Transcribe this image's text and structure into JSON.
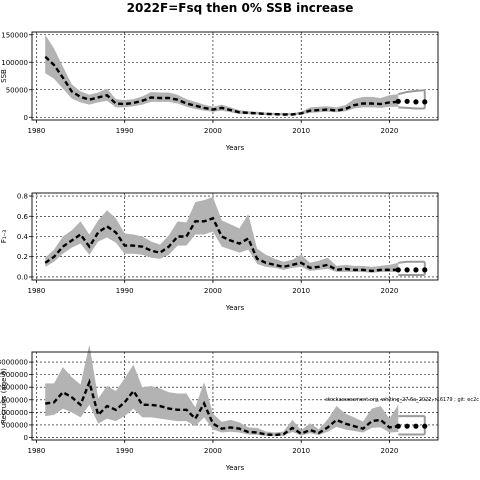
{
  "title": "2022F=Fsq then 0% SSB increase",
  "note": "stockassessment.org, whiting_27.6a_2022, r16179 ; git: ec2c",
  "chart_data": [
    {
      "type": "line",
      "ylabel": "SSB",
      "xlabel": "Years",
      "xlim": [
        1979.5,
        2025.5
      ],
      "ylim": [
        -5000,
        155000
      ],
      "xticks": [
        1980,
        1990,
        2000,
        2010,
        2020
      ],
      "yticks": [
        0,
        50000,
        100000,
        150000
      ],
      "ytick_labels": [
        "0",
        "50000",
        "100000",
        "150000"
      ],
      "grid": true,
      "x": [
        1981,
        1982,
        1983,
        1984,
        1985,
        1986,
        1987,
        1988,
        1989,
        1990,
        1991,
        1992,
        1993,
        1994,
        1995,
        1996,
        1997,
        1998,
        1999,
        2000,
        2001,
        2002,
        2003,
        2004,
        2005,
        2006,
        2007,
        2008,
        2009,
        2010,
        2011,
        2012,
        2013,
        2014,
        2015,
        2016,
        2017,
        2018,
        2019,
        2020,
        2021
      ],
      "estimate": [
        110000,
        95000,
        72000,
        47000,
        37000,
        32000,
        36000,
        40000,
        25000,
        24000,
        26000,
        30000,
        36000,
        35000,
        35000,
        32000,
        25000,
        21000,
        17000,
        14000,
        17000,
        13000,
        9000,
        8000,
        7000,
        6000,
        5500,
        5000,
        5000,
        7000,
        12000,
        13000,
        14000,
        12000,
        15000,
        22000,
        25000,
        25000,
        24000,
        27000,
        28000
      ],
      "lower": [
        80000,
        70000,
        52000,
        34000,
        27000,
        23000,
        27000,
        30000,
        18000,
        18000,
        20000,
        23000,
        28000,
        28000,
        28000,
        25000,
        19000,
        15000,
        12000,
        10000,
        12000,
        9000,
        6000,
        5500,
        5000,
        4000,
        3800,
        3500,
        3500,
        5000,
        8000,
        9000,
        10000,
        9000,
        11000,
        16000,
        18000,
        18000,
        17000,
        19000,
        19000
      ],
      "upper": [
        150000,
        125000,
        92000,
        60000,
        47000,
        41000,
        45000,
        52000,
        33000,
        31000,
        33000,
        38000,
        46000,
        45000,
        45000,
        41000,
        33000,
        28000,
        23000,
        19000,
        23000,
        18000,
        13000,
        11000,
        10000,
        8500,
        8000,
        7500,
        7500,
        10000,
        18000,
        19000,
        20000,
        18000,
        22000,
        33000,
        37000,
        37000,
        35000,
        40000,
        42000
      ],
      "forecast": {
        "x": [
          2021,
          2022,
          2023,
          2024
        ],
        "median": [
          29000,
          29000,
          28000,
          28000
        ],
        "lower": [
          18000,
          17000,
          16000,
          16000
        ],
        "upper": [
          42000,
          46000,
          48000,
          49000
        ]
      }
    },
    {
      "type": "line",
      "ylabel": "F₁₋₃",
      "xlabel": "Years",
      "xlim": [
        1979.5,
        2025.5
      ],
      "ylim": [
        -0.03,
        0.83
      ],
      "xticks": [
        1980,
        1990,
        2000,
        2010,
        2020
      ],
      "yticks": [
        0,
        0.2,
        0.4,
        0.6,
        0.8
      ],
      "ytick_labels": [
        "0.0",
        "0.2",
        "0.4",
        "0.6",
        "0.8"
      ],
      "grid": true,
      "x": [
        1981,
        1982,
        1983,
        1984,
        1985,
        1986,
        1987,
        1988,
        1989,
        1990,
        1991,
        1992,
        1993,
        1994,
        1995,
        1996,
        1997,
        1998,
        1999,
        2000,
        2001,
        2002,
        2003,
        2004,
        2005,
        2006,
        2007,
        2008,
        2009,
        2010,
        2011,
        2012,
        2013,
        2014,
        2015,
        2016,
        2017,
        2018,
        2019,
        2020,
        2021
      ],
      "estimate": [
        0.14,
        0.2,
        0.3,
        0.36,
        0.42,
        0.3,
        0.44,
        0.5,
        0.44,
        0.31,
        0.31,
        0.3,
        0.26,
        0.24,
        0.3,
        0.4,
        0.4,
        0.55,
        0.55,
        0.58,
        0.4,
        0.36,
        0.33,
        0.38,
        0.18,
        0.14,
        0.12,
        0.1,
        0.12,
        0.14,
        0.09,
        0.1,
        0.12,
        0.07,
        0.08,
        0.07,
        0.07,
        0.06,
        0.07,
        0.07,
        0.07
      ],
      "lower": [
        0.1,
        0.15,
        0.23,
        0.29,
        0.33,
        0.22,
        0.35,
        0.39,
        0.34,
        0.23,
        0.23,
        0.22,
        0.19,
        0.18,
        0.22,
        0.31,
        0.31,
        0.42,
        0.42,
        0.45,
        0.3,
        0.27,
        0.24,
        0.27,
        0.13,
        0.1,
        0.09,
        0.07,
        0.09,
        0.1,
        0.06,
        0.07,
        0.08,
        0.05,
        0.05,
        0.05,
        0.05,
        0.04,
        0.05,
        0.05,
        0.05
      ],
      "upper": [
        0.19,
        0.27,
        0.4,
        0.46,
        0.55,
        0.42,
        0.56,
        0.66,
        0.58,
        0.43,
        0.42,
        0.4,
        0.35,
        0.32,
        0.41,
        0.55,
        0.54,
        0.74,
        0.76,
        0.79,
        0.56,
        0.52,
        0.48,
        0.62,
        0.28,
        0.22,
        0.18,
        0.15,
        0.17,
        0.22,
        0.14,
        0.16,
        0.19,
        0.11,
        0.12,
        0.11,
        0.11,
        0.1,
        0.11,
        0.12,
        0.14
      ],
      "forecast": {
        "x": [
          2021,
          2022,
          2023,
          2024
        ],
        "median": [
          0.07,
          0.07,
          0.07,
          0.07
        ],
        "lower": [
          0.02,
          0.02,
          0.02,
          0.02
        ],
        "upper": [
          0.14,
          0.15,
          0.15,
          0.15
        ]
      }
    },
    {
      "type": "line",
      "ylabel": "Recruits (age 0)",
      "xlabel": "Years",
      "xlim": [
        1979.5,
        2025.5
      ],
      "ylim": [
        -100000000,
        3400000000
      ],
      "xticks": [
        1980,
        1990,
        2000,
        2010,
        2020
      ],
      "yticks": [
        0,
        500000000,
        1000000000,
        1500000000,
        2000000000,
        2500000000,
        3000000000
      ],
      "ytick_labels": [
        "0",
        "500000",
        "1000000",
        "1500000",
        "2000000",
        "2500000",
        "3000000"
      ],
      "grid": true,
      "x": [
        1981,
        1982,
        1983,
        1984,
        1985,
        1986,
        1987,
        1988,
        1989,
        1990,
        1991,
        1992,
        1993,
        1994,
        1995,
        1996,
        1997,
        1998,
        1999,
        2000,
        2001,
        2002,
        2003,
        2004,
        2005,
        2006,
        2007,
        2008,
        2009,
        2010,
        2011,
        2012,
        2013,
        2014,
        2015,
        2016,
        2017,
        2018,
        2019,
        2020,
        2021
      ],
      "estimate": [
        1350000000,
        1400000000,
        1800000000,
        1600000000,
        1300000000,
        2200000000,
        900000000,
        1250000000,
        1100000000,
        1400000000,
        1850000000,
        1300000000,
        1300000000,
        1250000000,
        1150000000,
        1100000000,
        1100000000,
        750000000,
        1350000000,
        550000000,
        350000000,
        400000000,
        350000000,
        220000000,
        200000000,
        120000000,
        100000000,
        130000000,
        380000000,
        150000000,
        300000000,
        180000000,
        400000000,
        700000000,
        550000000,
        450000000,
        350000000,
        650000000,
        700000000,
        400000000,
        450000000
      ],
      "lower": [
        850000000,
        900000000,
        1150000000,
        1000000000,
        800000000,
        1300000000,
        550000000,
        750000000,
        650000000,
        850000000,
        1150000000,
        800000000,
        800000000,
        750000000,
        700000000,
        650000000,
        650000000,
        450000000,
        800000000,
        320000000,
        200000000,
        230000000,
        200000000,
        120000000,
        110000000,
        60000000,
        50000000,
        70000000,
        220000000,
        80000000,
        170000000,
        100000000,
        230000000,
        420000000,
        320000000,
        260000000,
        200000000,
        380000000,
        400000000,
        200000000,
        220000000
      ],
      "upper": [
        2150000000,
        2150000000,
        2800000000,
        2400000000,
        2100000000,
        3700000000,
        1550000000,
        2050000000,
        1850000000,
        2350000000,
        2900000000,
        2000000000,
        2050000000,
        1950000000,
        1800000000,
        1750000000,
        1750000000,
        1200000000,
        2200000000,
        950000000,
        620000000,
        700000000,
        600000000,
        400000000,
        380000000,
        240000000,
        200000000,
        240000000,
        700000000,
        300000000,
        560000000,
        330000000,
        720000000,
        1250000000,
        950000000,
        800000000,
        630000000,
        1150000000,
        1250000000,
        750000000,
        1300000000
      ],
      "forecast": {
        "x": [
          2021,
          2022,
          2023,
          2024
        ],
        "median": [
          450000000,
          450000000,
          450000000,
          450000000
        ],
        "lower": [
          120000000,
          120000000,
          120000000,
          120000000
        ],
        "upper": [
          850000000,
          850000000,
          850000000,
          850000000
        ]
      }
    }
  ]
}
